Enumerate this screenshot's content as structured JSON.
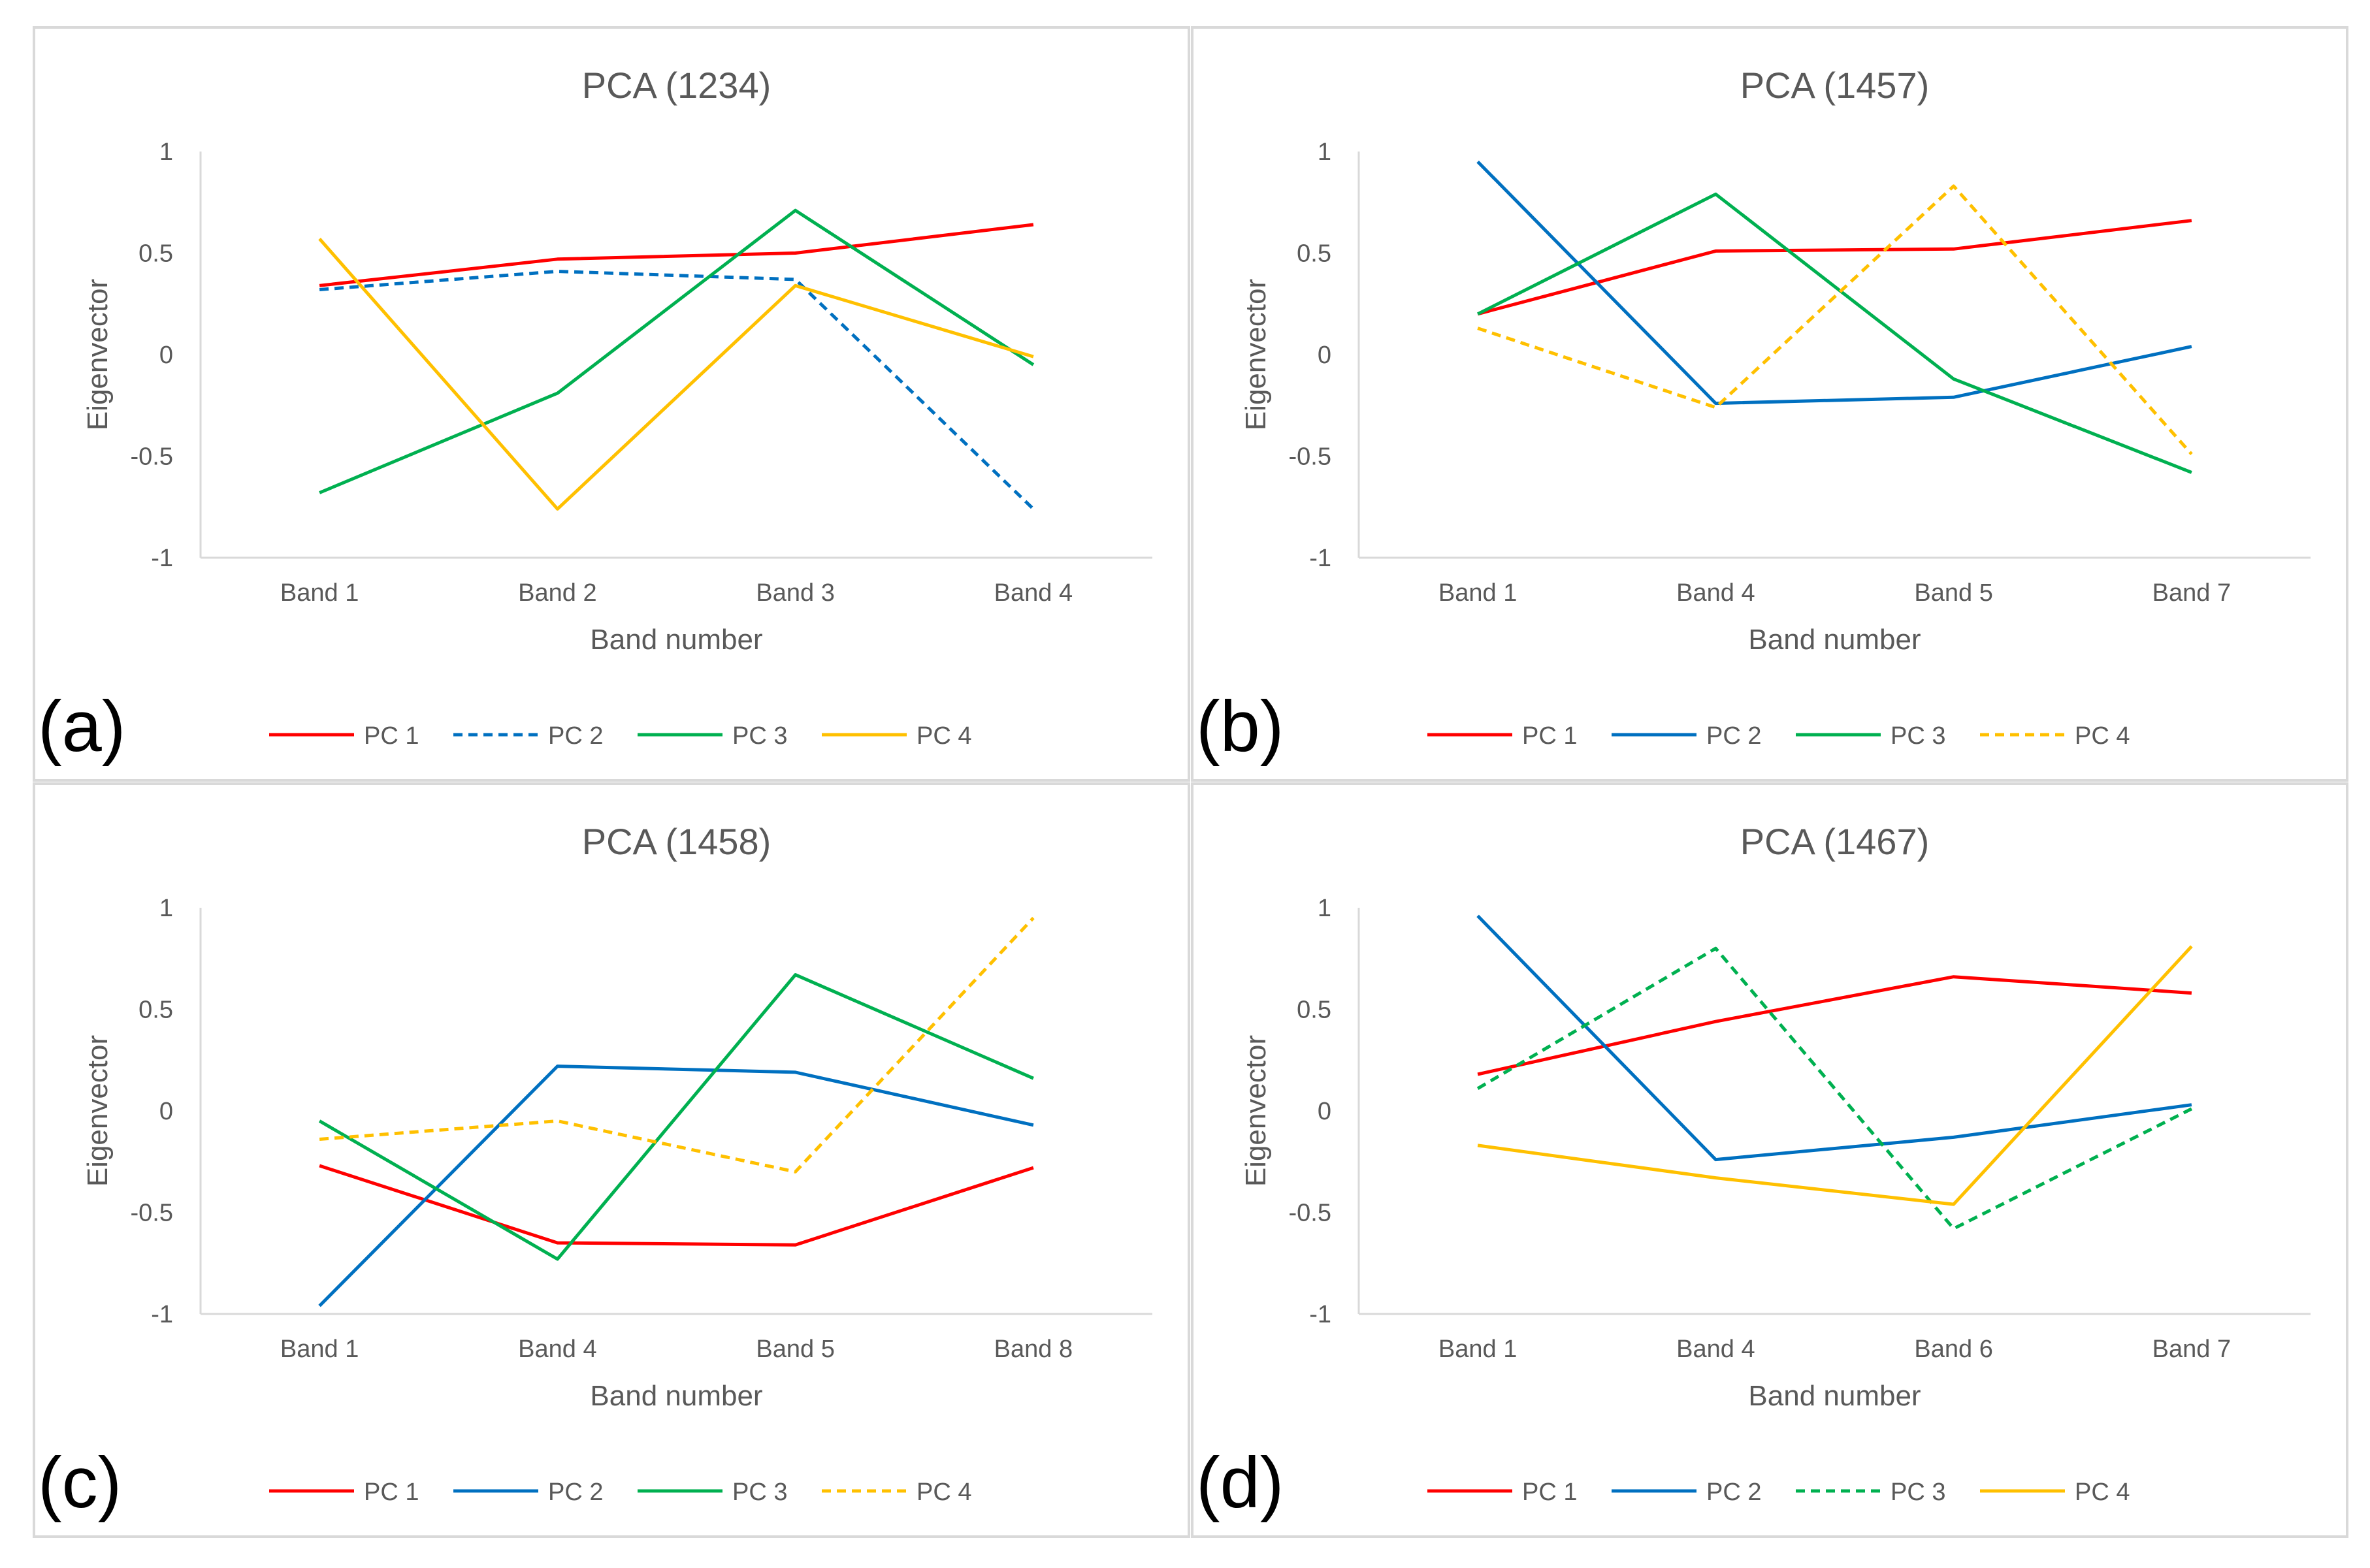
{
  "colors": {
    "PC 1": "#FF0000",
    "PC 2": "#0070C0",
    "PC 3": "#00B050",
    "PC 4": "#FFC000"
  },
  "chart_data": [
    {
      "type": "line",
      "panel_label": "(a)",
      "title": "PCA (1234)",
      "xlabel": "Band number",
      "ylabel": "Eigenvector",
      "ylim": [
        -1,
        1
      ],
      "yticks": [
        1,
        0.5,
        0,
        -0.5,
        -1
      ],
      "ytick_labels": [
        "1",
        "0.5",
        "0",
        "-0.5",
        "-1"
      ],
      "categories": [
        "Band 1",
        "Band 2",
        "Band 3",
        "Band 4"
      ],
      "legend_position": "bottom",
      "series": [
        {
          "name": "PC 1",
          "values": [
            0.34,
            0.47,
            0.5,
            0.64
          ],
          "style": "solid"
        },
        {
          "name": "PC 2",
          "values": [
            0.32,
            0.41,
            0.37,
            -0.76
          ],
          "style": "dashed"
        },
        {
          "name": "PC 3",
          "values": [
            -0.68,
            -0.19,
            0.71,
            -0.05
          ],
          "style": "solid"
        },
        {
          "name": "PC 4",
          "values": [
            0.57,
            -0.76,
            0.34,
            -0.01
          ],
          "style": "solid"
        }
      ]
    },
    {
      "type": "line",
      "panel_label": "(b)",
      "title": "PCA (1457)",
      "xlabel": "Band number",
      "ylabel": "Eigenvector",
      "ylim": [
        -1,
        1
      ],
      "yticks": [
        1,
        0.5,
        0,
        -0.5,
        -1
      ],
      "ytick_labels": [
        "1",
        "0.5",
        "0",
        "-0.5",
        "-1"
      ],
      "categories": [
        "Band 1",
        "Band 4",
        "Band 5",
        "Band 7"
      ],
      "legend_position": "bottom",
      "series": [
        {
          "name": "PC 1",
          "values": [
            0.2,
            0.51,
            0.52,
            0.66
          ],
          "style": "solid"
        },
        {
          "name": "PC 2",
          "values": [
            0.95,
            -0.24,
            -0.21,
            0.04
          ],
          "style": "solid"
        },
        {
          "name": "PC 3",
          "values": [
            0.2,
            0.79,
            -0.12,
            -0.58
          ],
          "style": "solid"
        },
        {
          "name": "PC 4",
          "values": [
            0.13,
            -0.26,
            0.83,
            -0.49
          ],
          "style": "dashed"
        }
      ]
    },
    {
      "type": "line",
      "panel_label": "(c)",
      "title": "PCA (1458)",
      "xlabel": "Band number",
      "ylabel": "Eigenvector",
      "ylim": [
        -1,
        1
      ],
      "yticks": [
        1,
        0.5,
        0,
        -0.5,
        -1
      ],
      "ytick_labels": [
        "1",
        "0.5",
        "0",
        "-0.5",
        "-1"
      ],
      "categories": [
        "Band 1",
        "Band 4",
        "Band 5",
        "Band 8"
      ],
      "legend_position": "bottom",
      "series": [
        {
          "name": "PC 1",
          "values": [
            -0.27,
            -0.65,
            -0.66,
            -0.28
          ],
          "style": "solid"
        },
        {
          "name": "PC 2",
          "values": [
            -0.96,
            0.22,
            0.19,
            -0.07
          ],
          "style": "solid"
        },
        {
          "name": "PC 3",
          "values": [
            -0.05,
            -0.73,
            0.67,
            0.16
          ],
          "style": "solid"
        },
        {
          "name": "PC 4",
          "values": [
            -0.14,
            -0.05,
            -0.3,
            0.95
          ],
          "style": "dashed"
        }
      ]
    },
    {
      "type": "line",
      "panel_label": "(d)",
      "title": "PCA (1467)",
      "xlabel": "Band number",
      "ylabel": "Eigenvector",
      "ylim": [
        -1,
        1
      ],
      "yticks": [
        1,
        0.5,
        0,
        -0.5,
        -1
      ],
      "ytick_labels": [
        "1",
        "0.5",
        "0",
        "-0.5",
        "-1"
      ],
      "categories": [
        "Band 1",
        "Band 4",
        "Band 6",
        "Band 7"
      ],
      "legend_position": "bottom",
      "series": [
        {
          "name": "PC 1",
          "values": [
            0.18,
            0.44,
            0.66,
            0.58
          ],
          "style": "solid"
        },
        {
          "name": "PC 2",
          "values": [
            0.96,
            -0.24,
            -0.13,
            0.03
          ],
          "style": "solid"
        },
        {
          "name": "PC 3",
          "values": [
            0.11,
            0.8,
            -0.58,
            0.01
          ],
          "style": "dashed"
        },
        {
          "name": "PC 4",
          "values": [
            -0.17,
            -0.33,
            -0.46,
            0.81
          ],
          "style": "solid"
        }
      ]
    }
  ]
}
